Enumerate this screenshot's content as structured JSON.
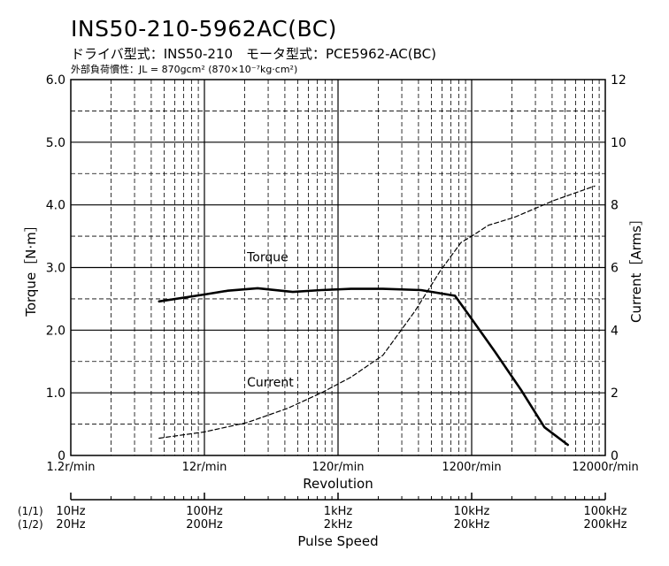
{
  "header": {
    "title": "INS50-210-5962AC(BC)",
    "subtitle": "ドライバ型式：INS50-210　モータ型式：PCE5962-AC(BC)",
    "note": "外部負荷慣性：JL = 870gcm² (870×10⁻⁷kg·cm²)"
  },
  "chart_data": {
    "type": "line",
    "xlabel": "Revolution",
    "ylabel": "Torque［N·m］",
    "y2label": "Current［Arms］",
    "x_scale": "log",
    "xlim": [
      1.2,
      12000
    ],
    "ylim": [
      0,
      6.0
    ],
    "y2lim": [
      0,
      12
    ],
    "grid": true,
    "x_tick_labels": [
      "1.2r/min",
      "12r/min",
      "120r/min",
      "1200r/min",
      "12000r/min"
    ],
    "x_tick_values": [
      1.2,
      12,
      120,
      1200,
      12000
    ],
    "y_tick_labels": [
      "0",
      "1.0",
      "2.0",
      "3.0",
      "4.0",
      "5.0",
      "6.0"
    ],
    "y_tick_values": [
      0,
      1,
      2,
      3,
      4,
      5,
      6
    ],
    "y2_tick_labels": [
      "0",
      "2",
      "4",
      "6",
      "8",
      "10",
      "12"
    ],
    "y2_tick_values": [
      0,
      2,
      4,
      6,
      8,
      10,
      12
    ],
    "series": [
      {
        "name": "Torque",
        "axis": "left",
        "style": "solid",
        "x": [
          5.5,
          12,
          18,
          30,
          55,
          90,
          150,
          260,
          500,
          900,
          1200,
          1800,
          2800,
          4200,
          6300
        ],
        "y": [
          2.46,
          2.57,
          2.63,
          2.67,
          2.61,
          2.64,
          2.66,
          2.66,
          2.64,
          2.55,
          2.18,
          1.65,
          1.05,
          0.45,
          0.17
        ]
      },
      {
        "name": "Current",
        "axis": "right",
        "style": "dashed",
        "x": [
          5.5,
          12,
          25,
          50,
          90,
          150,
          260,
          450,
          700,
          1000,
          1200,
          1600,
          2500,
          5000,
          10000
        ],
        "y": [
          0.55,
          0.75,
          1.05,
          1.5,
          2.0,
          2.5,
          3.2,
          4.6,
          5.9,
          6.8,
          7.0,
          7.35,
          7.6,
          8.15,
          8.6
        ]
      }
    ],
    "series_labels": [
      {
        "text": "Torque",
        "x": 25,
        "y": 3.1
      },
      {
        "text": "Current",
        "x": 25,
        "y": 1.1
      }
    ]
  },
  "pulse_axis": {
    "title": "Pulse Speed",
    "row1_label": "(1/1)",
    "row2_label": "(1/2)",
    "ticks": [
      {
        "at": 1.2,
        "row1": "10Hz",
        "row2": "20Hz"
      },
      {
        "at": 12,
        "row1": "100Hz",
        "row2": "200Hz"
      },
      {
        "at": 120,
        "row1": "1kHz",
        "row2": "2kHz"
      },
      {
        "at": 1200,
        "row1": "10kHz",
        "row2": "20kHz"
      },
      {
        "at": 12000,
        "row1": "100kHz",
        "row2": "200kHz"
      }
    ]
  }
}
